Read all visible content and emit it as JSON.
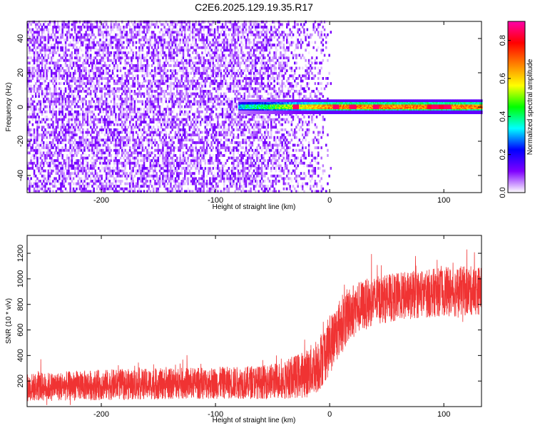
{
  "chart_data": {
    "title": "C2E6.2025.129.19.35.R17",
    "panels": [
      {
        "type": "heatmap",
        "xlabel": "Height of straight line (km)",
        "ylabel": "Frequency (Hz)",
        "xlim": [
          -265,
          133
        ],
        "ylim": [
          -50,
          50
        ],
        "xticks": [
          -200,
          -100,
          0,
          100
        ],
        "yticks": [
          -40,
          -20,
          0,
          20,
          40
        ],
        "colorbar": {
          "label": "Normalized spectral amplitude",
          "ticks": [
            "0.0",
            "0.2",
            "0.4",
            "0.6",
            "0.8"
          ],
          "range": [
            0,
            0.9
          ],
          "colormap": [
            "#ffffff",
            "#7f00ff",
            "#0000ff",
            "#00ffff",
            "#00ff00",
            "#ffff00",
            "#ff8000",
            "#ff0000",
            "#ff00aa"
          ]
        },
        "description_values": {
          "noise_region_km": [
            -265,
            -10
          ],
          "noise_amplitude_range": [
            0.0,
            0.15
          ],
          "signal_band_hz": [
            -3,
            3
          ],
          "signal_start_km": -80,
          "signal_band_center_hz": 0,
          "signal_amplitude_range": [
            0.2,
            0.9
          ],
          "peak_heights_km": [
            -30,
            5,
            20,
            40,
            92,
            103
          ]
        }
      },
      {
        "type": "line",
        "xlabel": "Height of straight line (km)",
        "ylabel": "SNR (10 * v/v)",
        "xlim": [
          -265,
          133
        ],
        "ylim": [
          0,
          1340
        ],
        "xticks": [
          -200,
          -100,
          0,
          100
        ],
        "yticks": [
          200,
          400,
          600,
          800,
          1000,
          1200
        ],
        "color": "#f03333",
        "envelope": {
          "x": [
            -265,
            -200,
            -100,
            -60,
            -40,
            -20,
            -10,
            0,
            10,
            20,
            40,
            60,
            80,
            100,
            110,
            133
          ],
          "mean": [
            150,
            170,
            185,
            190,
            210,
            260,
            330,
            480,
            640,
            760,
            830,
            860,
            880,
            900,
            900,
            910
          ],
          "spread": [
            110,
            120,
            125,
            130,
            150,
            190,
            220,
            230,
            230,
            210,
            190,
            190,
            190,
            190,
            200,
            190
          ]
        }
      }
    ]
  }
}
